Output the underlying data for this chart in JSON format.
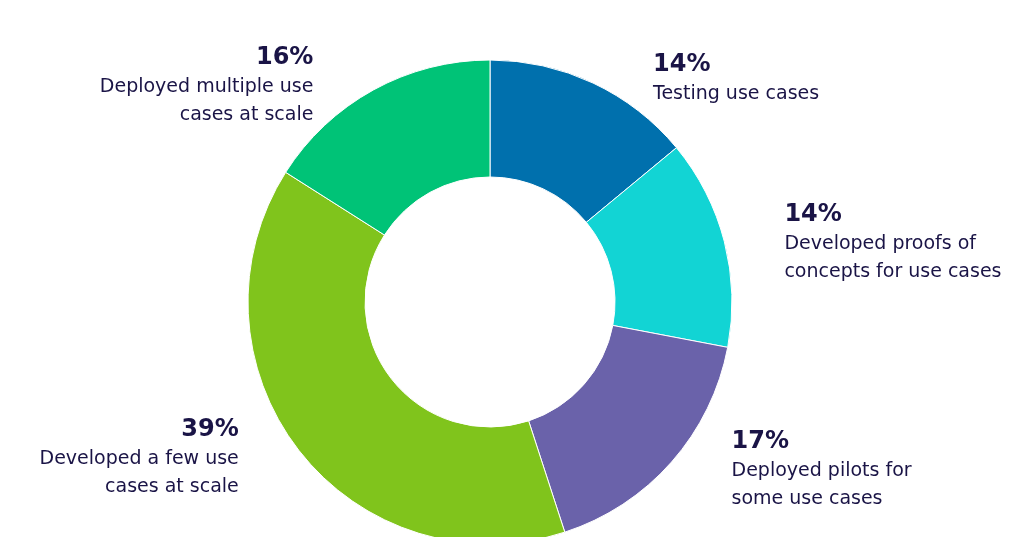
{
  "chart_data": {
    "type": "donut",
    "categories": [
      "Testing use cases",
      "Developed proofs of concepts for use cases",
      "Deployed pilots for some use cases",
      "Developed a few use cases at scale",
      "Deployed multiple use cases at scale"
    ],
    "values": [
      14,
      14,
      17,
      39,
      16
    ],
    "value_labels": [
      "14%",
      "14%",
      "17%",
      "39%",
      "16%"
    ],
    "colors": [
      "#0070ad",
      "#12d4d4",
      "#6a62aa",
      "#80c41c",
      "#00c377"
    ]
  }
}
